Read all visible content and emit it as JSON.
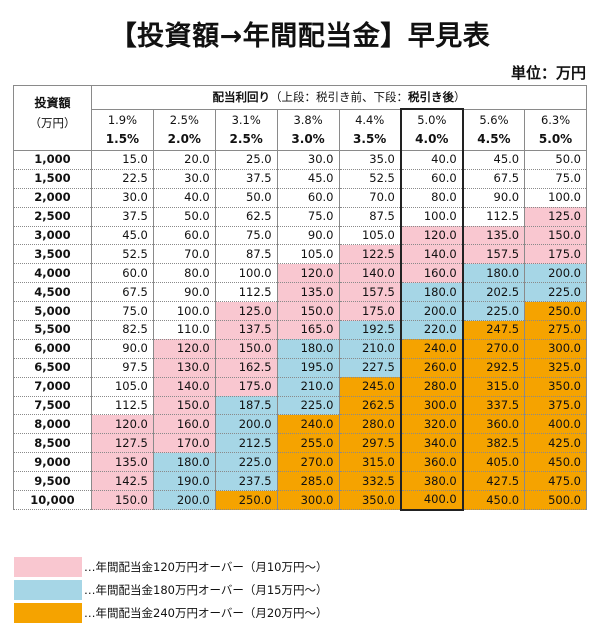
{
  "title": "【投資額→年間配当金】早見表",
  "unit": "単位：万円",
  "header": {
    "investment_label": "投資額",
    "investment_unit": "（万円）",
    "group_prefix": "配当利回り",
    "group_mid": "（上段：税引き前、下段：",
    "group_bold": "税引き後",
    "group_suffix": "）"
  },
  "rates": [
    {
      "pre": "1.9%",
      "post": "1.5%"
    },
    {
      "pre": "2.5%",
      "post": "2.0%"
    },
    {
      "pre": "3.1%",
      "post": "2.5%"
    },
    {
      "pre": "3.8%",
      "post": "3.0%"
    },
    {
      "pre": "4.4%",
      "post": "3.5%"
    },
    {
      "pre": "5.0%",
      "post": "4.0%"
    },
    {
      "pre": "5.6%",
      "post": "4.5%"
    },
    {
      "pre": "6.3%",
      "post": "5.0%"
    }
  ],
  "highlight_column": 5,
  "rows": [
    {
      "investment": "1,000",
      "values": [
        "15.0",
        "20.0",
        "25.0",
        "30.0",
        "35.0",
        "40.0",
        "45.0",
        "50.0"
      ]
    },
    {
      "investment": "1,500",
      "values": [
        "22.5",
        "30.0",
        "37.5",
        "45.0",
        "52.5",
        "60.0",
        "67.5",
        "75.0"
      ]
    },
    {
      "investment": "2,000",
      "values": [
        "30.0",
        "40.0",
        "50.0",
        "60.0",
        "70.0",
        "80.0",
        "90.0",
        "100.0"
      ]
    },
    {
      "investment": "2,500",
      "values": [
        "37.5",
        "50.0",
        "62.5",
        "75.0",
        "87.5",
        "100.0",
        "112.5",
        "125.0"
      ]
    },
    {
      "investment": "3,000",
      "values": [
        "45.0",
        "60.0",
        "75.0",
        "90.0",
        "105.0",
        "120.0",
        "135.0",
        "150.0"
      ]
    },
    {
      "investment": "3,500",
      "values": [
        "52.5",
        "70.0",
        "87.5",
        "105.0",
        "122.5",
        "140.0",
        "157.5",
        "175.0"
      ]
    },
    {
      "investment": "4,000",
      "values": [
        "60.0",
        "80.0",
        "100.0",
        "120.0",
        "140.0",
        "160.0",
        "180.0",
        "200.0"
      ]
    },
    {
      "investment": "4,500",
      "values": [
        "67.5",
        "90.0",
        "112.5",
        "135.0",
        "157.5",
        "180.0",
        "202.5",
        "225.0"
      ]
    },
    {
      "investment": "5,000",
      "values": [
        "75.0",
        "100.0",
        "125.0",
        "150.0",
        "175.0",
        "200.0",
        "225.0",
        "250.0"
      ]
    },
    {
      "investment": "5,500",
      "values": [
        "82.5",
        "110.0",
        "137.5",
        "165.0",
        "192.5",
        "220.0",
        "247.5",
        "275.0"
      ]
    },
    {
      "investment": "6,000",
      "values": [
        "90.0",
        "120.0",
        "150.0",
        "180.0",
        "210.0",
        "240.0",
        "270.0",
        "300.0"
      ]
    },
    {
      "investment": "6,500",
      "values": [
        "97.5",
        "130.0",
        "162.5",
        "195.0",
        "227.5",
        "260.0",
        "292.5",
        "325.0"
      ]
    },
    {
      "investment": "7,000",
      "values": [
        "105.0",
        "140.0",
        "175.0",
        "210.0",
        "245.0",
        "280.0",
        "315.0",
        "350.0"
      ]
    },
    {
      "investment": "7,500",
      "values": [
        "112.5",
        "150.0",
        "187.5",
        "225.0",
        "262.5",
        "300.0",
        "337.5",
        "375.0"
      ]
    },
    {
      "investment": "8,000",
      "values": [
        "120.0",
        "160.0",
        "200.0",
        "240.0",
        "280.0",
        "320.0",
        "360.0",
        "400.0"
      ]
    },
    {
      "investment": "8,500",
      "values": [
        "127.5",
        "170.0",
        "212.5",
        "255.0",
        "297.5",
        "340.0",
        "382.5",
        "425.0"
      ]
    },
    {
      "investment": "9,000",
      "values": [
        "135.0",
        "180.0",
        "225.0",
        "270.0",
        "315.0",
        "360.0",
        "405.0",
        "450.0"
      ]
    },
    {
      "investment": "9,500",
      "values": [
        "142.5",
        "190.0",
        "237.5",
        "285.0",
        "332.5",
        "380.0",
        "427.5",
        "475.0"
      ]
    },
    {
      "investment": "10,000",
      "values": [
        "150.0",
        "200.0",
        "250.0",
        "300.0",
        "350.0",
        "400.0",
        "450.0",
        "500.0"
      ]
    }
  ],
  "thresholds": [
    {
      "min": 240,
      "class": "orange"
    },
    {
      "min": 180,
      "class": "blue"
    },
    {
      "min": 120,
      "class": "pink"
    }
  ],
  "colors": {
    "pink": "#f9c7d0",
    "blue": "#a6d6e6",
    "orange": "#f5a300"
  },
  "legend": [
    {
      "color": "pink",
      "text": "…年間配当金120万円オーバー（月10万円～）"
    },
    {
      "color": "blue",
      "text": "…年間配当金180万円オーバー（月15万円～）"
    },
    {
      "color": "orange",
      "text": "…年間配当金240万円オーバー（月20万円～）"
    }
  ]
}
